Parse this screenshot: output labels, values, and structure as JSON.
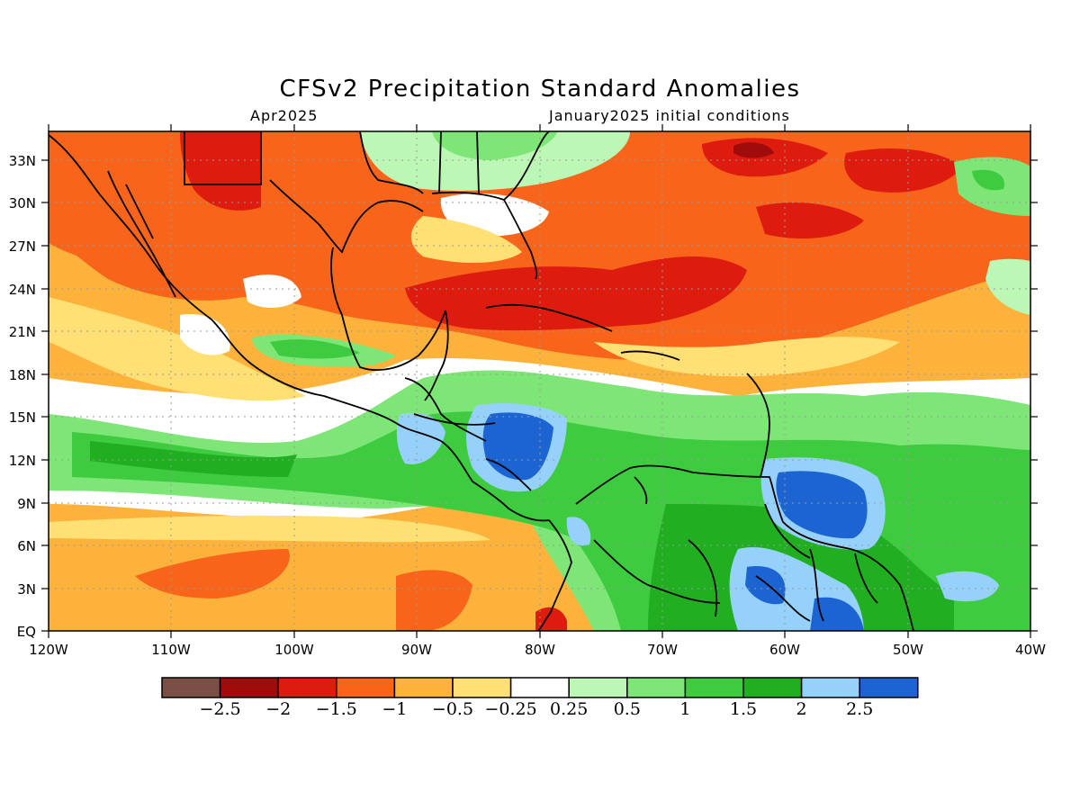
{
  "title": "CFSv2 Precipitation Standard Anomalies",
  "subtitle_left": "Apr2025",
  "subtitle_right": "January2025 initial conditions",
  "map": {
    "lon_range": [
      -120,
      -40
    ],
    "lat_range": [
      0,
      35
    ],
    "lat_ticks": [
      "EQ",
      "3N",
      "6N",
      "9N",
      "12N",
      "15N",
      "18N",
      "21N",
      "24N",
      "27N",
      "30N",
      "33N"
    ],
    "lon_ticks": [
      "120W",
      "110W",
      "100W",
      "90W",
      "80W",
      "70W",
      "60W",
      "50W",
      "40W"
    ],
    "gridlines": "dotted"
  },
  "colorbar": {
    "colors": [
      "#7a4f45",
      "#a00c0c",
      "#dd1b0f",
      "#f8651a",
      "#fdb33b",
      "#ffe075",
      "#ffffff",
      "#bdf7b5",
      "#7de676",
      "#3fcb3f",
      "#21ae21",
      "#95d1fb",
      "#1b64d2"
    ],
    "labels": [
      "-2.5",
      "-2",
      "-1.5",
      "-1",
      "-0.5",
      "-0.25",
      "0.25",
      "0.5",
      "1",
      "1.5",
      "2",
      "2.5"
    ]
  }
}
